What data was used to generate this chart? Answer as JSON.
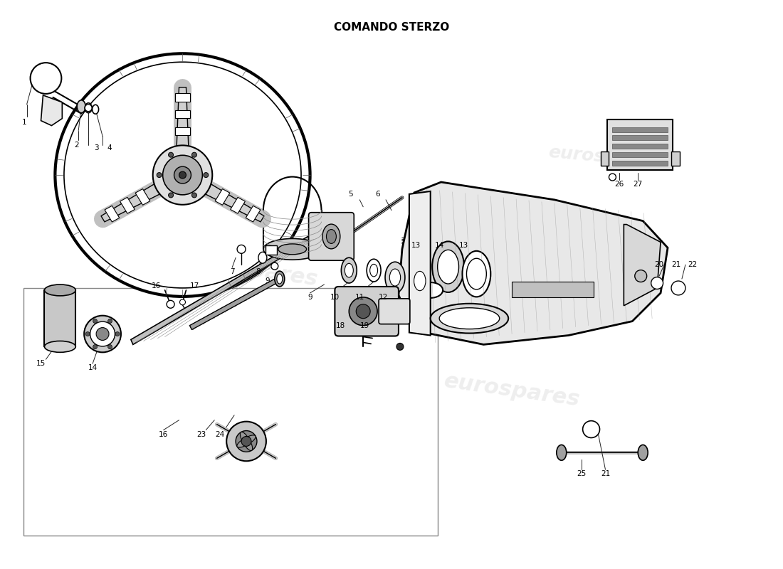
{
  "title": "COMANDO STERZO",
  "title_fontsize": 11,
  "title_fontweight": "bold",
  "bg_color": "#ffffff",
  "watermark_text": "eurospares",
  "watermark_color": "#c8c8c8",
  "watermark_alpha": 0.3,
  "fig_width": 11.0,
  "fig_height": 8.0,
  "dpi": 100,
  "line_color": "#000000",
  "stroke_width": 1.2,
  "label_fontsize": 7.5
}
